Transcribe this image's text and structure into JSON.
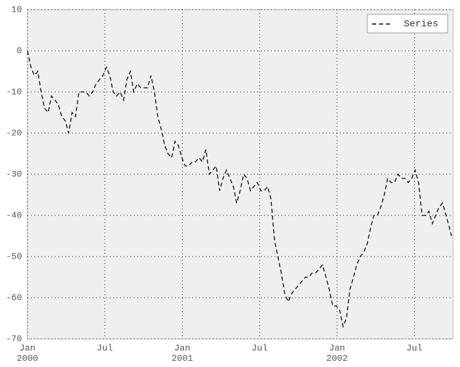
{
  "chart_data": {
    "type": "line",
    "x": [
      0,
      0.27,
      0.53,
      0.8,
      1.06,
      1.33,
      1.6,
      1.86,
      2.13,
      2.39,
      2.66,
      2.93,
      3.19,
      3.46,
      3.72,
      3.99,
      4.26,
      4.52,
      4.79,
      5.05,
      5.32,
      5.59,
      5.85,
      6.12,
      6.38,
      6.65,
      6.91,
      7.18,
      7.45,
      7.71,
      7.98,
      8.24,
      8.51,
      8.78,
      9.04,
      9.31,
      9.57,
      9.84,
      10.11,
      10.37,
      10.64,
      10.9,
      11.17,
      11.44,
      11.7,
      11.97,
      12.23,
      12.5,
      12.77,
      13.03,
      13.3,
      13.56,
      13.83,
      14.1,
      14.36,
      14.63,
      14.89,
      15.16,
      15.43,
      15.69,
      15.96,
      16.22,
      16.49,
      16.76,
      17.02,
      17.29,
      17.55,
      17.82,
      18.09,
      18.35,
      18.62,
      18.88,
      19.15,
      19.41,
      19.68,
      19.95,
      20.21,
      20.48,
      20.74,
      21.01,
      21.28,
      21.54,
      21.81,
      22.07,
      22.34,
      22.61,
      22.87,
      23.14,
      23.4,
      23.67,
      23.94,
      24.2,
      24.47,
      24.73,
      25,
      25.27,
      25.53,
      25.8,
      26.06,
      26.33,
      26.6,
      26.86,
      27.13,
      27.39,
      27.66,
      27.93,
      28.19,
      28.46,
      28.72,
      28.99,
      29.26,
      29.52,
      29.79,
      30.05,
      30.32,
      30.59,
      30.85,
      31.12,
      31.38,
      31.65,
      31.91,
      32.18,
      32.45,
      32.71,
      32.87
    ],
    "series": [
      {
        "name": "Series",
        "color": "#000000",
        "values": [
          0,
          -4,
          -6,
          -5,
          -10,
          -14,
          -15,
          -11,
          -12,
          -13,
          -16,
          -17,
          -20,
          -15,
          -16,
          -10,
          -10,
          -10,
          -11,
          -10,
          -8,
          -7,
          -6,
          -4,
          -6,
          -10,
          -11,
          -10,
          -12,
          -7,
          -5,
          -10,
          -8,
          -9,
          -9,
          -9,
          -6,
          -10,
          -16,
          -19,
          -23,
          -25,
          -26,
          -22,
          -23,
          -26,
          -28,
          -28,
          -27,
          -27,
          -26,
          -27,
          -24,
          -30,
          -29,
          -28,
          -34,
          -31,
          -29,
          -31,
          -33,
          -37,
          -34,
          -30,
          -31,
          -34,
          -33,
          -32,
          -34,
          -34,
          -33,
          -36,
          -46,
          -50,
          -54,
          -59,
          -61,
          -59,
          -58,
          -57,
          -56,
          -55,
          -55,
          -54,
          -54,
          -53,
          -52,
          -55,
          -58,
          -62,
          -62,
          -63,
          -67,
          -65,
          -58,
          -55,
          -52,
          -50,
          -49,
          -47,
          -43,
          -40,
          -40,
          -38,
          -35,
          -31,
          -32,
          -32,
          -30,
          -31,
          -31,
          -32,
          -31,
          -29,
          -32,
          -40,
          -40,
          -39,
          -42,
          -40,
          -38,
          -37,
          -40,
          -43,
          -45
        ]
      }
    ],
    "xlim": [
      0,
      33
    ],
    "xticks": [
      {
        "value": 0,
        "label": "Jan\n2000"
      },
      {
        "value": 6,
        "label": "Jul"
      },
      {
        "value": 12,
        "label": "Jan\n2001"
      },
      {
        "value": 18,
        "label": "Jul"
      },
      {
        "value": 24,
        "label": "Jan\n2002"
      },
      {
        "value": 30,
        "label": "Jul"
      }
    ],
    "ylim": [
      -70,
      10
    ],
    "yticks": [
      10,
      0,
      -10,
      -20,
      -30,
      -40,
      -50,
      -60,
      -70
    ],
    "grid": true,
    "legend": "upper right",
    "dashed": true
  }
}
